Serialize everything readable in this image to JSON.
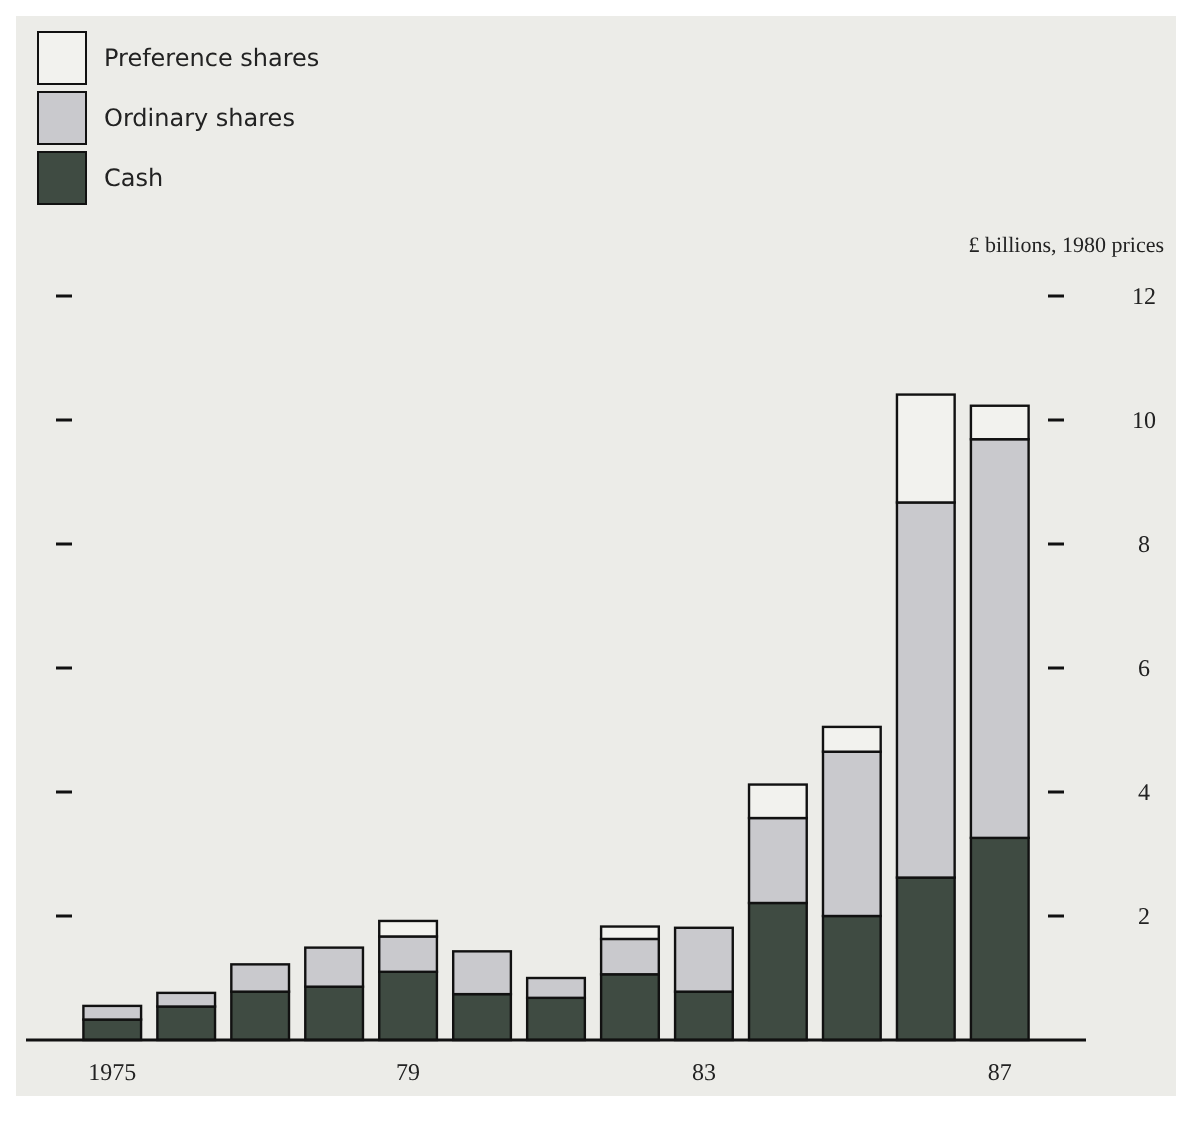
{
  "chart_data": {
    "type": "bar",
    "stacked": true,
    "ylabel": "£ billions, 1980 prices",
    "legend": "top left",
    "grid": false,
    "categories": [
      "1975",
      null,
      null,
      null,
      "79",
      null,
      null,
      null,
      "83",
      null,
      null,
      null,
      "87"
    ],
    "ylim": [
      0,
      12
    ],
    "yticks": [
      2,
      4,
      6,
      8,
      10,
      12
    ],
    "series": [
      {
        "name": "Cash",
        "color": "#3f4b42",
        "values": [
          0.33,
          0.54,
          0.78,
          0.86,
          1.1,
          0.74,
          0.68,
          1.06,
          0.78,
          2.21,
          2.0,
          2.62,
          3.26
        ]
      },
      {
        "name": "Ordinary shares",
        "color": "#c9c9cd",
        "values": [
          0.22,
          0.22,
          0.44,
          0.63,
          0.57,
          0.69,
          0.32,
          0.57,
          1.03,
          1.37,
          2.65,
          6.05,
          6.43
        ]
      },
      {
        "name": "Preference shares",
        "color": "#f2f2ee",
        "values": [
          null,
          null,
          null,
          null,
          0.25,
          null,
          null,
          0.2,
          null,
          0.54,
          0.4,
          1.74,
          0.54
        ]
      }
    ]
  }
}
